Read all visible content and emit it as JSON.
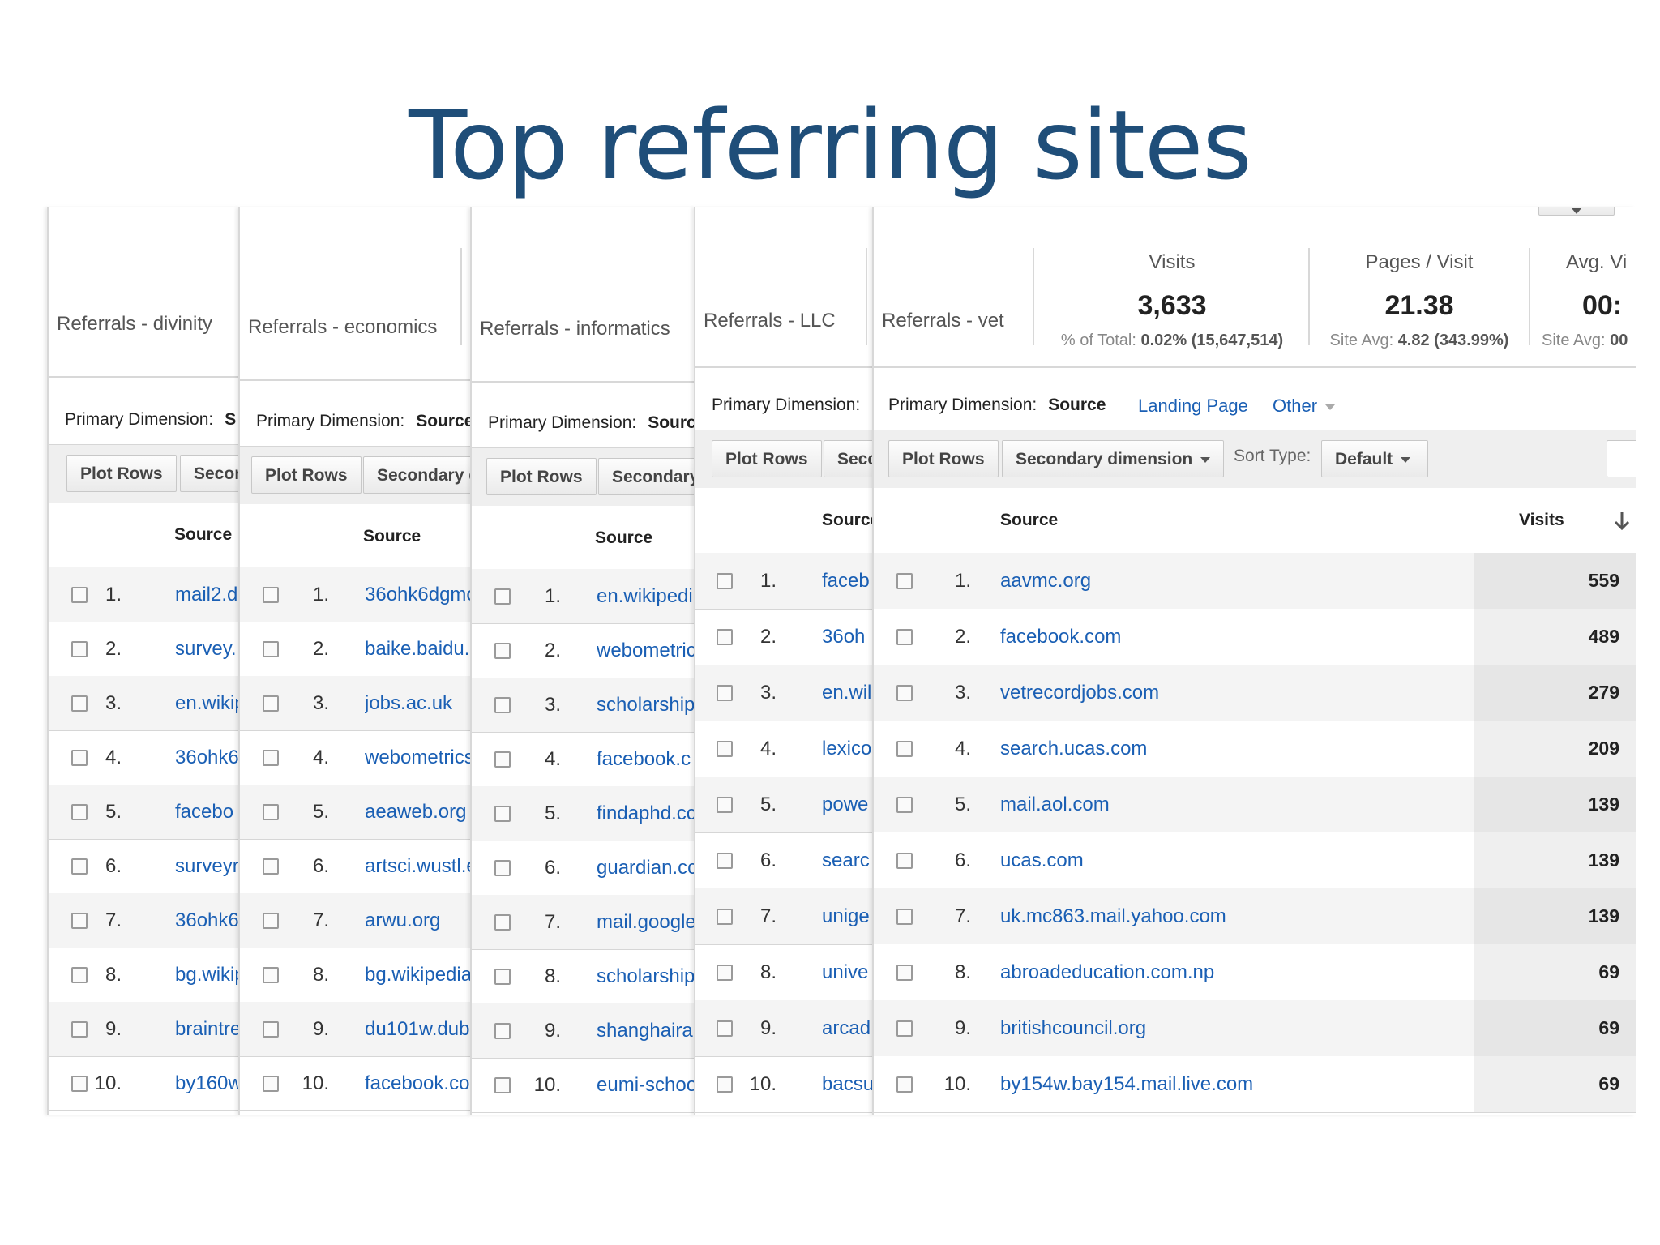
{
  "slide": {
    "title": "Top referring sites"
  },
  "panels": {
    "divinity": {
      "title": "Referrals - divinity",
      "primary_dimension": "Primary Dimension:",
      "primary_value": "S",
      "plot_rows": "Plot Rows",
      "secondary": "Secon",
      "source_header": "Source",
      "rows": [
        {
          "rank": "1.",
          "source": "mail2.d"
        },
        {
          "rank": "2.",
          "source": "survey."
        },
        {
          "rank": "3.",
          "source": "en.wikip"
        },
        {
          "rank": "4.",
          "source": "36ohk6"
        },
        {
          "rank": "5.",
          "source": "facebo"
        },
        {
          "rank": "6.",
          "source": "surveyr"
        },
        {
          "rank": "7.",
          "source": "36ohk6"
        },
        {
          "rank": "8.",
          "source": "bg.wikip"
        },
        {
          "rank": "9.",
          "source": "braintre"
        },
        {
          "rank": "10.",
          "source": "by160w"
        }
      ]
    },
    "economics": {
      "title": "Referrals - economics",
      "primary_dimension": "Primary Dimension:",
      "primary_value": "Source",
      "plot_rows": "Plot Rows",
      "secondary": "Secondary d",
      "source_header": "Source",
      "rows": [
        {
          "rank": "1.",
          "source": "36ohk6dgmc"
        },
        {
          "rank": "2.",
          "source": "baike.baidu.c"
        },
        {
          "rank": "3.",
          "source": "jobs.ac.uk"
        },
        {
          "rank": "4.",
          "source": "webometrics"
        },
        {
          "rank": "5.",
          "source": "aeaweb.org"
        },
        {
          "rank": "6.",
          "source": "artsci.wustl.e"
        },
        {
          "rank": "7.",
          "source": "arwu.org"
        },
        {
          "rank": "8.",
          "source": "bg.wikipedia"
        },
        {
          "rank": "9.",
          "source": "du101w.dub"
        },
        {
          "rank": "10.",
          "source": "facebook.co"
        }
      ]
    },
    "informatics": {
      "title": "Referrals - informatics",
      "primary_dimension": "Primary Dimension:",
      "primary_value": "Sourc",
      "plot_rows": "Plot Rows",
      "secondary": "Secondary",
      "source_header": "Source",
      "rows": [
        {
          "rank": "1.",
          "source": "en.wikipedi"
        },
        {
          "rank": "2.",
          "source": "webometric"
        },
        {
          "rank": "3.",
          "source": "scholarship"
        },
        {
          "rank": "4.",
          "source": "facebook.c"
        },
        {
          "rank": "5.",
          "source": "findaphd.cc"
        },
        {
          "rank": "6.",
          "source": "guardian.cc"
        },
        {
          "rank": "7.",
          "source": "mail.google"
        },
        {
          "rank": "8.",
          "source": "scholarship"
        },
        {
          "rank": "9.",
          "source": "shanghaira"
        },
        {
          "rank": "10.",
          "source": "eumi-schoo"
        }
      ]
    },
    "llc": {
      "title": "Referrals - LLC",
      "primary_dimension": "Primary Dimension:",
      "plot_rows": "Plot Rows",
      "secondary": "Secc",
      "source_header": "Source",
      "rows": [
        {
          "rank": "1.",
          "source": "faceb"
        },
        {
          "rank": "2.",
          "source": "36oh"
        },
        {
          "rank": "3.",
          "source": "en.wil"
        },
        {
          "rank": "4.",
          "source": "lexico"
        },
        {
          "rank": "5.",
          "source": "powe"
        },
        {
          "rank": "6.",
          "source": "searc"
        },
        {
          "rank": "7.",
          "source": "unige"
        },
        {
          "rank": "8.",
          "source": "unive"
        },
        {
          "rank": "9.",
          "source": "arcad"
        },
        {
          "rank": "10.",
          "source": "bacsu"
        }
      ]
    },
    "vet": {
      "title": "Referrals - vet",
      "primary_dimension": "Primary Dimension:",
      "primary_value": "Source",
      "landing_page": "Landing Page",
      "other": "Other",
      "plot_rows": "Plot Rows",
      "secondary": "Secondary dimension",
      "sort_type_label": "Sort Type:",
      "sort_type_value": "Default",
      "source_header": "Source",
      "visits_header": "Visits",
      "metrics": [
        {
          "label": "Visits",
          "value": "3,633",
          "sub_label": "% of Total:",
          "sub_value": "0.02% (15,647,514)"
        },
        {
          "label": "Pages / Visit",
          "value": "21.38",
          "sub_label": "Site Avg:",
          "sub_value": "4.82 (343.99%)"
        },
        {
          "label": "Avg. Vi",
          "value": "00:",
          "sub_label": "Site Avg:",
          "sub_value": "00"
        }
      ],
      "rows": [
        {
          "rank": "1.",
          "source": "aavmc.org",
          "visits": "559"
        },
        {
          "rank": "2.",
          "source": "facebook.com",
          "visits": "489"
        },
        {
          "rank": "3.",
          "source": "vetrecordjobs.com",
          "visits": "279"
        },
        {
          "rank": "4.",
          "source": "search.ucas.com",
          "visits": "209"
        },
        {
          "rank": "5.",
          "source": "mail.aol.com",
          "visits": "139"
        },
        {
          "rank": "6.",
          "source": "ucas.com",
          "visits": "139"
        },
        {
          "rank": "7.",
          "source": "uk.mc863.mail.yahoo.com",
          "visits": "139"
        },
        {
          "rank": "8.",
          "source": "abroadeducation.com.np",
          "visits": "69"
        },
        {
          "rank": "9.",
          "source": "britishcouncil.org",
          "visits": "69"
        },
        {
          "rank": "10.",
          "source": "by154w.bay154.mail.live.com",
          "visits": "69"
        }
      ]
    }
  }
}
